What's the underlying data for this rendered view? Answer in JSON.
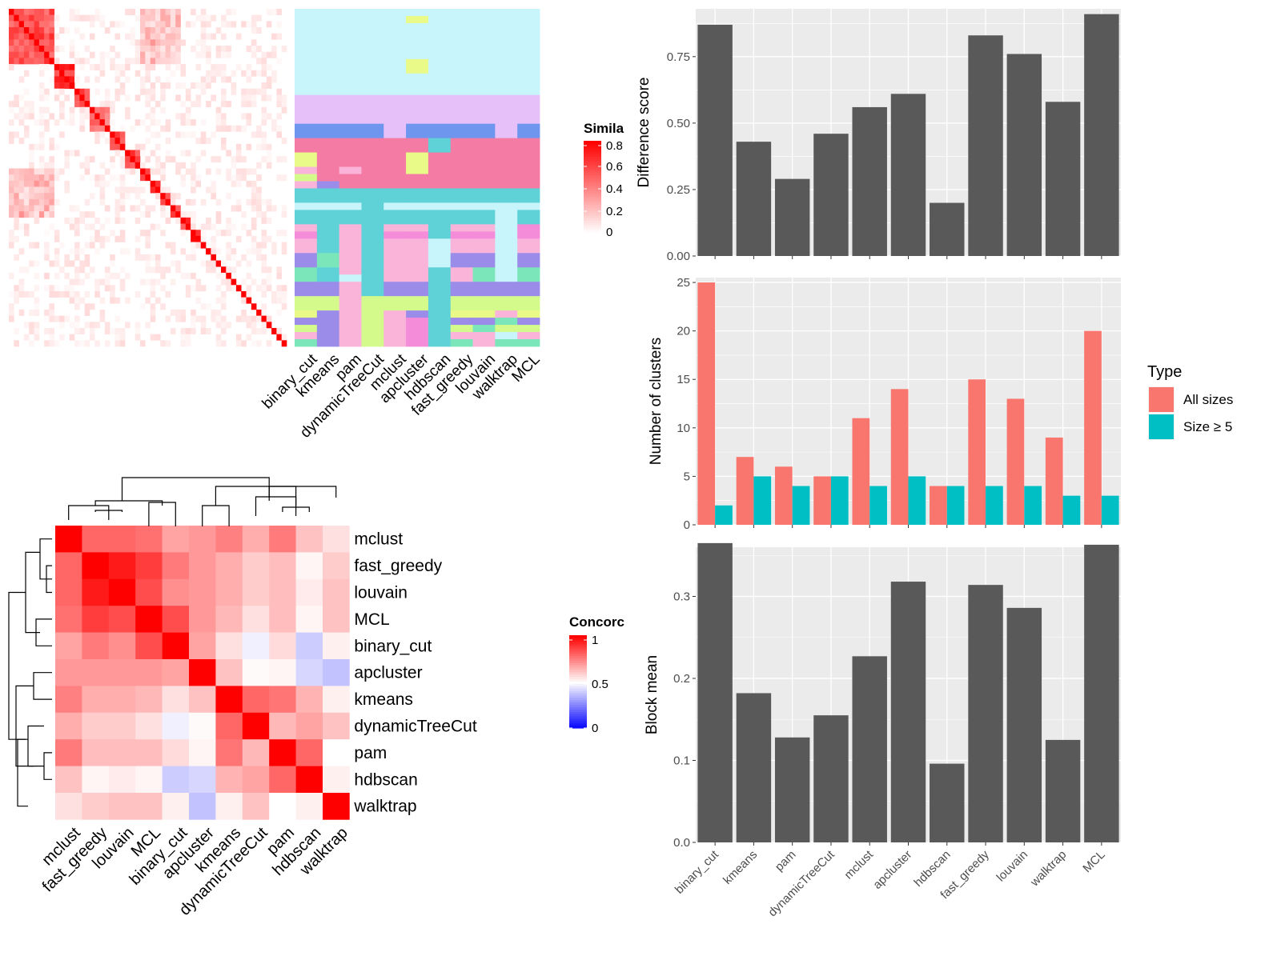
{
  "chart_data": [
    {
      "type": "heatmap",
      "title": "",
      "legend": {
        "title": "Simila",
        "ticks": [
          "0.8",
          "0.6",
          "0.4",
          "0.2",
          "0"
        ],
        "range": [
          0,
          0.85
        ]
      },
      "methods": [
        "binary_cut",
        "kmeans",
        "pam",
        "dynamicTreeCut",
        "mclust",
        "apcluster",
        "hdbscan",
        "fast_greedy",
        "louvain",
        "walktrap",
        "MCL"
      ],
      "block_sizes": [
        9,
        4,
        3,
        4,
        3,
        3,
        2,
        2,
        2,
        2,
        2,
        2,
        1,
        1,
        1,
        1,
        1,
        1,
        1,
        1,
        1,
        1,
        1,
        1,
        1,
        1,
        1,
        1,
        1
      ],
      "block_strength": [
        0.72,
        0.85,
        0.8,
        0.6,
        0.75,
        0.8,
        0.7,
        0.8,
        0.85,
        0.8,
        0.8,
        0.85,
        0.9,
        0.9,
        0.9,
        0.9,
        0.9,
        0.9,
        0.9,
        0.9,
        0.9,
        0.9,
        0.9,
        0.9,
        0.9,
        0.9,
        0.9,
        0.9,
        0.9
      ],
      "palette": [
        "#c8f5fb",
        "#e6c0f8",
        "#6e96ef",
        "#f47ba4",
        "#5fd2d8",
        "#f58cd9",
        "#fbb4d9",
        "#9c8ce9",
        "#7be6ba",
        "#d4fa8c",
        "#e9fa88"
      ],
      "cluster_rows": [
        {
          "n": 1,
          "c": [
            0,
            0,
            0,
            0,
            0,
            0,
            0,
            0,
            0,
            0,
            0
          ]
        },
        {
          "n": 1,
          "c": [
            0,
            0,
            0,
            0,
            0,
            10,
            0,
            0,
            0,
            0,
            0
          ]
        },
        {
          "n": 5,
          "c": [
            0,
            0,
            0,
            0,
            0,
            0,
            0,
            0,
            0,
            0,
            0
          ]
        },
        {
          "n": 2,
          "c": [
            0,
            0,
            0,
            0,
            0,
            10,
            0,
            0,
            0,
            0,
            0
          ]
        },
        {
          "n": 3,
          "c": [
            0,
            0,
            0,
            0,
            0,
            0,
            0,
            0,
            0,
            0,
            0
          ]
        },
        {
          "n": 4,
          "c": [
            1,
            1,
            1,
            1,
            1,
            1,
            1,
            1,
            1,
            1,
            1
          ]
        },
        {
          "n": 2,
          "c": [
            2,
            2,
            2,
            2,
            1,
            2,
            2,
            2,
            2,
            1,
            2
          ]
        },
        {
          "n": 2,
          "c": [
            3,
            3,
            3,
            3,
            3,
            3,
            4,
            3,
            3,
            3,
            3
          ]
        },
        {
          "n": 2,
          "c": [
            10,
            3,
            3,
            3,
            3,
            10,
            3,
            3,
            3,
            3,
            3
          ]
        },
        {
          "n": 1,
          "c": [
            6,
            3,
            6,
            3,
            3,
            10,
            3,
            3,
            3,
            3,
            3
          ]
        },
        {
          "n": 1,
          "c": [
            9,
            3,
            3,
            3,
            3,
            3,
            3,
            3,
            3,
            3,
            3
          ]
        },
        {
          "n": 1,
          "c": [
            6,
            7,
            3,
            3,
            3,
            3,
            3,
            3,
            3,
            3,
            3
          ]
        },
        {
          "n": 2,
          "c": [
            4,
            4,
            4,
            4,
            4,
            4,
            4,
            4,
            4,
            4,
            4
          ]
        },
        {
          "n": 1,
          "c": [
            0,
            0,
            0,
            4,
            0,
            0,
            0,
            0,
            0,
            0,
            0
          ]
        },
        {
          "n": 2,
          "c": [
            4,
            4,
            4,
            4,
            4,
            4,
            4,
            4,
            4,
            0,
            4
          ]
        },
        {
          "n": 1,
          "c": [
            6,
            4,
            6,
            4,
            6,
            6,
            4,
            6,
            6,
            0,
            5
          ]
        },
        {
          "n": 1,
          "c": [
            5,
            4,
            6,
            4,
            5,
            5,
            4,
            5,
            5,
            0,
            5
          ]
        },
        {
          "n": 2,
          "c": [
            6,
            4,
            6,
            4,
            6,
            6,
            0,
            6,
            6,
            0,
            6
          ]
        },
        {
          "n": 2,
          "c": [
            7,
            8,
            6,
            4,
            6,
            6,
            0,
            7,
            7,
            0,
            7
          ]
        },
        {
          "n": 1,
          "c": [
            8,
            4,
            6,
            4,
            6,
            6,
            4,
            6,
            8,
            0,
            8
          ]
        },
        {
          "n": 1,
          "c": [
            8,
            4,
            0,
            4,
            6,
            6,
            4,
            6,
            8,
            0,
            8
          ]
        },
        {
          "n": 2,
          "c": [
            7,
            7,
            6,
            4,
            7,
            7,
            4,
            7,
            7,
            7,
            7
          ]
        },
        {
          "n": 2,
          "c": [
            9,
            9,
            6,
            9,
            9,
            9,
            4,
            9,
            9,
            9,
            9
          ]
        },
        {
          "n": 1,
          "c": [
            10,
            7,
            6,
            9,
            6,
            7,
            4,
            10,
            10,
            6,
            10
          ]
        },
        {
          "n": 1,
          "c": [
            7,
            7,
            6,
            9,
            6,
            5,
            4,
            7,
            7,
            8,
            7
          ]
        },
        {
          "n": 1,
          "c": [
            9,
            7,
            6,
            9,
            6,
            5,
            4,
            9,
            8,
            9,
            9
          ]
        },
        {
          "n": 1,
          "c": [
            6,
            7,
            6,
            9,
            6,
            5,
            4,
            6,
            6,
            0,
            6
          ]
        },
        {
          "n": 1,
          "c": [
            8,
            7,
            6,
            9,
            6,
            5,
            4,
            8,
            6,
            8,
            8
          ]
        }
      ]
    },
    {
      "type": "heatmap",
      "title": "",
      "legend": {
        "title": "Concorc",
        "ticks": [
          "1",
          "0.5",
          "0"
        ],
        "range": [
          0,
          1
        ]
      },
      "rows": [
        "mclust",
        "fast_greedy",
        "louvain",
        "MCL",
        "binary_cut",
        "apcluster",
        "kmeans",
        "dynamicTreeCut",
        "pam",
        "hdbscan",
        "walktrap"
      ],
      "columns": [
        "mclust",
        "fast_greedy",
        "louvain",
        "MCL",
        "binary_cut",
        "apcluster",
        "kmeans",
        "dynamicTreeCut",
        "pam",
        "hdbscan",
        "walktrap"
      ],
      "values": [
        [
          1.0,
          0.8,
          0.8,
          0.78,
          0.68,
          0.7,
          0.75,
          0.66,
          0.76,
          0.62,
          0.56
        ],
        [
          0.8,
          1.0,
          0.95,
          0.88,
          0.76,
          0.7,
          0.66,
          0.6,
          0.63,
          0.52,
          0.6
        ],
        [
          0.8,
          0.95,
          1.0,
          0.85,
          0.72,
          0.7,
          0.66,
          0.6,
          0.63,
          0.54,
          0.62
        ],
        [
          0.78,
          0.88,
          0.85,
          1.0,
          0.85,
          0.7,
          0.64,
          0.56,
          0.63,
          0.52,
          0.62
        ],
        [
          0.68,
          0.76,
          0.72,
          0.85,
          1.0,
          0.68,
          0.56,
          0.47,
          0.57,
          0.4,
          0.53
        ],
        [
          0.7,
          0.7,
          0.7,
          0.7,
          0.68,
          1.0,
          0.62,
          0.51,
          0.52,
          0.42,
          0.38
        ],
        [
          0.75,
          0.66,
          0.66,
          0.64,
          0.56,
          0.62,
          1.0,
          0.8,
          0.77,
          0.65,
          0.53
        ],
        [
          0.66,
          0.6,
          0.6,
          0.56,
          0.47,
          0.51,
          0.8,
          1.0,
          0.64,
          0.68,
          0.62
        ],
        [
          0.76,
          0.63,
          0.63,
          0.63,
          0.57,
          0.52,
          0.77,
          0.64,
          1.0,
          0.8,
          0.5
        ],
        [
          0.62,
          0.52,
          0.54,
          0.52,
          0.4,
          0.42,
          0.65,
          0.68,
          0.8,
          1.0,
          0.53
        ],
        [
          0.56,
          0.6,
          0.62,
          0.62,
          0.53,
          0.38,
          0.53,
          0.62,
          0.5,
          0.53,
          1.0
        ]
      ]
    },
    {
      "type": "bar",
      "title": "",
      "xlabel": "",
      "ylabel": "Difference score",
      "ylim": [
        0,
        0.93
      ],
      "yticks": [
        "0.00",
        "0.25",
        "0.50",
        "0.75"
      ],
      "categories": [
        "binary_cut",
        "kmeans",
        "pam",
        "dynamicTreeCut",
        "mclust",
        "apcluster",
        "hdbscan",
        "fast_greedy",
        "louvain",
        "walktrap",
        "MCL"
      ],
      "values": [
        0.87,
        0.43,
        0.29,
        0.46,
        0.56,
        0.61,
        0.2,
        0.83,
        0.76,
        0.58,
        0.91
      ],
      "color": "#595959"
    },
    {
      "type": "bar",
      "title": "",
      "xlabel": "",
      "ylabel": "Number of clusters",
      "ylim": [
        0,
        25.5
      ],
      "yticks": [
        "0",
        "5",
        "10",
        "15",
        "20",
        "25"
      ],
      "categories": [
        "binary_cut",
        "kmeans",
        "pam",
        "dynamicTreeCut",
        "mclust",
        "apcluster",
        "hdbscan",
        "fast_greedy",
        "louvain",
        "walktrap",
        "MCL"
      ],
      "series": [
        {
          "name": "All sizes",
          "values": [
            25,
            7,
            6,
            5,
            11,
            14,
            4,
            15,
            13,
            9,
            20
          ],
          "color": "#f8766d"
        },
        {
          "name": "Size ≥ 5",
          "values": [
            2,
            5,
            4,
            5,
            4,
            5,
            4,
            4,
            4,
            3,
            3
          ],
          "color": "#00bfc4"
        }
      ],
      "legend": {
        "title": "Type",
        "position": "right"
      }
    },
    {
      "type": "bar",
      "title": "",
      "xlabel": "",
      "ylabel": "Block mean",
      "ylim": [
        0,
        0.36
      ],
      "yticks": [
        "0.0",
        "0.1",
        "0.2",
        "0.3"
      ],
      "categories": [
        "binary_cut",
        "kmeans",
        "pam",
        "dynamicTreeCut",
        "mclust",
        "apcluster",
        "hdbscan",
        "fast_greedy",
        "louvain",
        "walktrap",
        "MCL"
      ],
      "values": [
        0.365,
        0.182,
        0.128,
        0.155,
        0.227,
        0.318,
        0.096,
        0.314,
        0.286,
        0.125,
        0.363
      ],
      "color": "#595959"
    }
  ]
}
